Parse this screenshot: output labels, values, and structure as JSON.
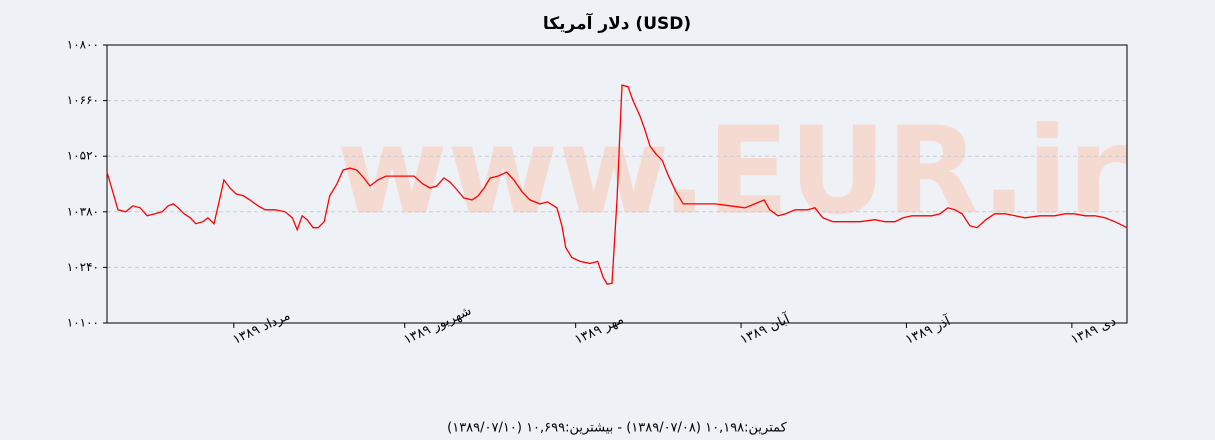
{
  "chart_data": {
    "type": "line",
    "title": "دلار آمریکا (USD)",
    "watermark": "www.EUR.ir",
    "footer": "کمترین:۱۰,۱۹۸ (۱۳۸۹/۰۷/۰۸) - بیشترین:۱۰,۶۹۹ (۱۳۸۹/۰۷/۱۰)",
    "color": "#ff0000",
    "grid": true,
    "xlim": [
      0,
      185
    ],
    "xticks": [
      {
        "value": 23,
        "label": "مرداد ۱۳۸۹"
      },
      {
        "value": 54,
        "label": "شهریور ۱۳۸۹"
      },
      {
        "value": 85,
        "label": "مهر ۱۳۸۹"
      },
      {
        "value": 115,
        "label": "آبان ۱۳۸۹"
      },
      {
        "value": 145,
        "label": "آذر ۱۳۸۹"
      },
      {
        "value": 175,
        "label": "دی ۱۳۸۹"
      }
    ],
    "ylim": [
      10100,
      10800
    ],
    "yticks": [
      {
        "value": 10100,
        "label": "۱۰۱۰۰"
      },
      {
        "value": 10240,
        "label": "۱۰۲۴۰"
      },
      {
        "value": 10380,
        "label": "۱۰۳۸۰"
      },
      {
        "value": 10520,
        "label": "۱۰۵۲۰"
      },
      {
        "value": 10660,
        "label": "۱۰۶۶۰"
      },
      {
        "value": 10800,
        "label": "۱۰۸۰۰"
      }
    ],
    "x": [
      0,
      2.0,
      3.4,
      4.7,
      6.0,
      7.3,
      8.7,
      10.0,
      11.1,
      12.0,
      12.9,
      14.0,
      15.1,
      16.1,
      17.4,
      18.3,
      19.4,
      20.5,
      21.2,
      22.3,
      23.4,
      24.8,
      25.9,
      27.4,
      28.7,
      30.5,
      32.3,
      33.6,
      34.5,
      35.4,
      36.3,
      37.4,
      38.3,
      39.4,
      40.4,
      41.7,
      42.8,
      44.1,
      45.3,
      46.6,
      47.7,
      49.1,
      50.6,
      52.4,
      54.2,
      55.7,
      57.3,
      58.6,
      59.8,
      61.1,
      62.2,
      63.5,
      64.7,
      66.2,
      67.3,
      68.4,
      69.5,
      70.9,
      72.5,
      73.8,
      75.3,
      76.7,
      78.5,
      79.9,
      81.6,
      82.5,
      83.2,
      84.3,
      85.8,
      87.6,
      89.0,
      90.0,
      90.7,
      91.6,
      92.5,
      93.4,
      94.5,
      95.4,
      96.7,
      97.6,
      98.5,
      99.6,
      100.7,
      101.7,
      103.2,
      104.5,
      107.5,
      110.3,
      113.0,
      115.7,
      117.5,
      119.2,
      120.2,
      121.7,
      123.1,
      124.8,
      127.1,
      128.4,
      129.8,
      131.7,
      133.8,
      136.6,
      139.3,
      141.1,
      142.9,
      144.4,
      146.0,
      147.8,
      149.6,
      151.1,
      152.5,
      153.8,
      155.1,
      156.5,
      157.8,
      159.4,
      161.0,
      162.9,
      164.7,
      166.5,
      169.2,
      171.9,
      173.7,
      175.5,
      177.4,
      179.2,
      181.0,
      182.8,
      185.0
    ],
    "values": [
      10480,
      10385,
      10380,
      10395,
      10390,
      10370,
      10375,
      10380,
      10395,
      10400,
      10390,
      10375,
      10365,
      10350,
      10355,
      10365,
      10350,
      10415,
      10460,
      10440,
      10425,
      10420,
      10410,
      10395,
      10385,
      10385,
      10380,
      10365,
      10335,
      10370,
      10360,
      10340,
      10340,
      10355,
      10420,
      10450,
      10485,
      10490,
      10485,
      10465,
      10445,
      10460,
      10470,
      10470,
      10470,
      10470,
      10450,
      10440,
      10445,
      10465,
      10455,
      10435,
      10415,
      10410,
      10420,
      10440,
      10465,
      10470,
      10480,
      10460,
      10430,
      10410,
      10400,
      10405,
      10390,
      10345,
      10290,
      10265,
      10255,
      10250,
      10255,
      10215,
      10198,
      10200,
      10410,
      10699,
      10695,
      10660,
      10620,
      10585,
      10545,
      10525,
      10510,
      10475,
      10430,
      10400,
      10400,
      10400,
      10395,
      10390,
      10400,
      10410,
      10385,
      10370,
      10375,
      10385,
      10385,
      10390,
      10365,
      10355,
      10355,
      10355,
      10360,
      10355,
      10355,
      10365,
      10370,
      10370,
      10370,
      10375,
      10390,
      10385,
      10375,
      10345,
      10340,
      10360,
      10375,
      10375,
      10370,
      10365,
      10370,
      10370,
      10375,
      10375,
      10370,
      10370,
      10365,
      10355,
      10340
    ]
  }
}
